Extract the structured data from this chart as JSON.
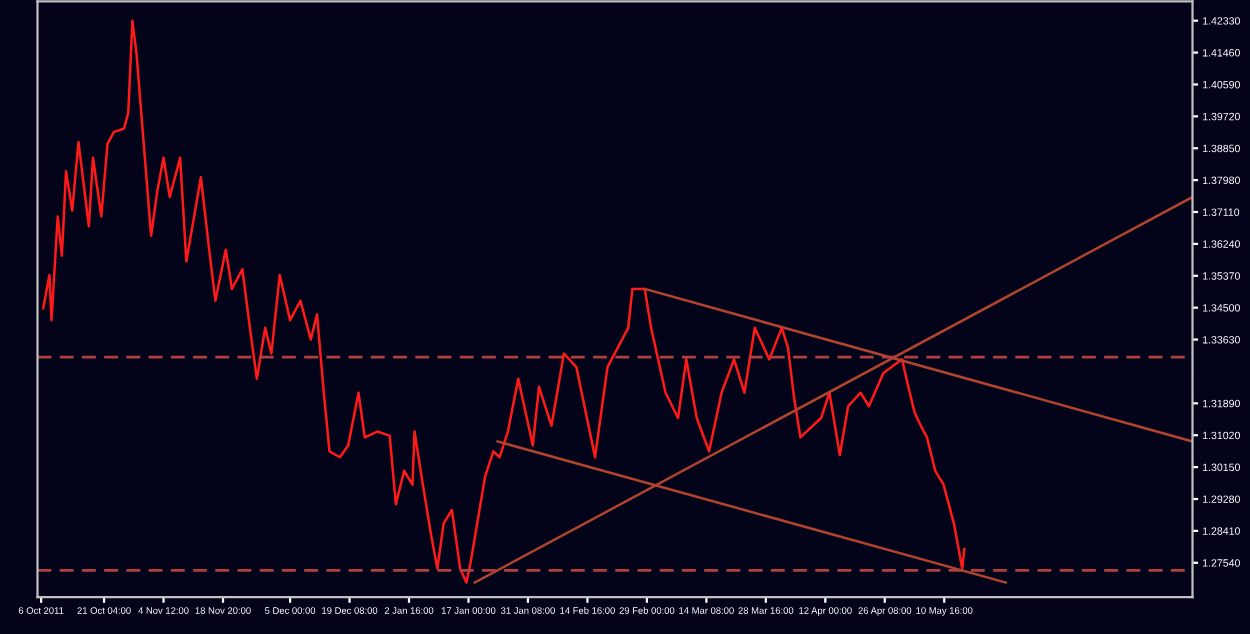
{
  "chart_data": {
    "type": "line",
    "xlim": [
      "2011-10-05T03:00",
      "2012-07-09T12:00"
    ],
    "ylim": [
      1.266,
      1.4286
    ],
    "xticks": [
      {
        "value": "2011-10-06",
        "label": "6 Oct 2011"
      },
      {
        "value": "2011-10-21T04:00",
        "label": "21 Oct 04:00"
      },
      {
        "value": "2011-11-04T12:00",
        "label": "4 Nov 12:00"
      },
      {
        "value": "2011-11-18T20:00",
        "label": "18 Nov 20:00"
      },
      {
        "value": "2011-12-05",
        "label": "5 Dec 00:00"
      },
      {
        "value": "2011-12-19T08:00",
        "label": "19 Dec 08:00"
      },
      {
        "value": "2012-01-02T16:00",
        "label": "2 Jan 16:00"
      },
      {
        "value": "2012-01-17",
        "label": "17 Jan 00:00"
      },
      {
        "value": "2012-01-31T08:00",
        "label": "31 Jan 08:00"
      },
      {
        "value": "2012-02-14T16:00",
        "label": "14 Feb 16:00"
      },
      {
        "value": "2012-02-29",
        "label": "29 Feb 00:00"
      },
      {
        "value": "2012-03-14T08:00",
        "label": "14 Mar 08:00"
      },
      {
        "value": "2012-03-28T16:00",
        "label": "28 Mar 16:00"
      },
      {
        "value": "2012-04-12",
        "label": "12 Apr 00:00"
      },
      {
        "value": "2012-04-26T08:00",
        "label": "26 Apr 08:00"
      },
      {
        "value": "2012-05-10T16:00",
        "label": "10 May 16:00"
      }
    ],
    "yticks": [
      {
        "value": 1.4233,
        "label": "1.42330"
      },
      {
        "value": 1.4146,
        "label": "1.41460"
      },
      {
        "value": 1.4059,
        "label": "1.40590"
      },
      {
        "value": 1.3972,
        "label": "1.39720"
      },
      {
        "value": 1.3885,
        "label": "1.38850"
      },
      {
        "value": 1.3798,
        "label": "1.37980"
      },
      {
        "value": 1.3711,
        "label": "1.37110"
      },
      {
        "value": 1.3624,
        "label": "1.36240"
      },
      {
        "value": 1.3537,
        "label": "1.35370"
      },
      {
        "value": 1.345,
        "label": "1.34500"
      },
      {
        "value": 1.3363,
        "label": "1.33630"
      },
      {
        "value": 1.3189,
        "label": "1.31890"
      },
      {
        "value": 1.3102,
        "label": "1.31020"
      },
      {
        "value": 1.3015,
        "label": "1.30150"
      },
      {
        "value": 1.2928,
        "label": "1.29280"
      },
      {
        "value": 1.2841,
        "label": "1.28410"
      },
      {
        "value": 1.2754,
        "label": "1.27540"
      }
    ],
    "grid": false,
    "ref_lines": [
      {
        "axis": "y",
        "value": 1.3315,
        "color": "#b04040",
        "line_style": "dashed"
      },
      {
        "axis": "y",
        "value": 1.2733,
        "color": "#b04040",
        "line_style": "dashed"
      }
    ],
    "series": [
      {
        "color": "#ff1a1a",
        "x": [
          "2011-10-06T12:00",
          "2011-10-08",
          "2011-10-08T12:00",
          "2011-10-10",
          "2011-10-11",
          "2011-10-12",
          "2011-10-13T12:00",
          "2011-10-15",
          "2011-10-17T12:00",
          "2011-10-18T12:00",
          "2011-10-20T12:00",
          "2011-10-22",
          "2011-10-23T12:00",
          "2011-10-26",
          "2011-10-27",
          "2011-10-28",
          "2011-10-29",
          "2011-10-30T12:00",
          "2011-11-01T12:00",
          "2011-11-03",
          "2011-11-04T12:00",
          "2011-11-06",
          "2011-11-08T12:00",
          "2011-11-10",
          "2011-11-13T12:00",
          "2011-11-15T12:00",
          "2011-11-17",
          "2011-11-19T12:00",
          "2011-11-21",
          "2011-11-23T12:00",
          "2011-11-25T12:00",
          "2011-11-27",
          "2011-11-29",
          "2011-11-30T12:00",
          "2011-12-02T12:00",
          "2011-12-05",
          "2011-12-07T12:00",
          "2011-12-10",
          "2011-12-11T12:00",
          "2011-12-13",
          "2011-12-14T12:00",
          "2011-12-17",
          "2011-12-19",
          "2011-12-21T12:00",
          "2011-12-23",
          "2011-12-26",
          "2011-12-29",
          "2011-12-30T12:00",
          "2012-01-01T12:00",
          "2012-01-03T12:00",
          "2012-01-04",
          "2012-01-06",
          "2012-01-08",
          "2012-01-09T12:00",
          "2012-01-11",
          "2012-01-13",
          "2012-01-15",
          "2012-01-16T12:00",
          "2012-01-17T12:00",
          "2012-01-21",
          "2012-01-23",
          "2012-01-24T12:00",
          "2012-01-26T12:00",
          "2012-01-29",
          "2012-02-01T12:00",
          "2012-02-03",
          "2012-02-06",
          "2012-02-09",
          "2012-02-12",
          "2012-02-16T12:00",
          "2012-02-19T12:00",
          "2012-02-24T12:00",
          "2012-02-25T12:00",
          "2012-02-28T12:00",
          "2012-03-01",
          "2012-03-04T12:00",
          "2012-03-07T12:00",
          "2012-03-09T12:00",
          "2012-03-12",
          "2012-03-15",
          "2012-03-18",
          "2012-03-21",
          "2012-03-23T12:00",
          "2012-03-26",
          "2012-03-29T12:00",
          "2012-04-01T12:00",
          "2012-04-03",
          "2012-04-04T12:00",
          "2012-04-06",
          "2012-04-11",
          "2012-04-13",
          "2012-04-15T12:00",
          "2012-04-17T12:00",
          "2012-04-20T12:00",
          "2012-04-22T12:00",
          "2012-04-26",
          "2012-04-30T12:00",
          "2012-05-02",
          "2012-05-03T12:00",
          "2012-05-05",
          "2012-05-06T12:00",
          "2012-05-08T12:00",
          "2012-05-10T12:00",
          "2012-05-13",
          "2012-05-15",
          "2012-05-15T12:00"
        ],
        "values": [
          1.3448,
          1.3539,
          1.3416,
          1.3699,
          1.3592,
          1.3822,
          1.3715,
          1.3902,
          1.3672,
          1.3859,
          1.3699,
          1.3897,
          1.3929,
          1.3939,
          1.3982,
          1.4233,
          1.4142,
          1.3929,
          1.3646,
          1.3768,
          1.3859,
          1.3752,
          1.3859,
          1.3576,
          1.3806,
          1.3608,
          1.3469,
          1.3608,
          1.3501,
          1.3555,
          1.3379,
          1.3256,
          1.3395,
          1.3325,
          1.3539,
          1.3416,
          1.3469,
          1.3363,
          1.3432,
          1.3234,
          1.3058,
          1.3042,
          1.3074,
          1.3218,
          1.3096,
          1.3112,
          1.3101,
          1.2914,
          1.3005,
          1.2967,
          1.3112,
          1.2967,
          1.2829,
          1.2738,
          1.2861,
          1.2898,
          1.2738,
          1.27,
          1.2754,
          1.2989,
          1.3058,
          1.3042,
          1.3112,
          1.3256,
          1.3074,
          1.3234,
          1.3128,
          1.3325,
          1.3288,
          1.3042,
          1.3288,
          1.3395,
          1.3501,
          1.3501,
          1.3395,
          1.3218,
          1.3149,
          1.3309,
          1.3149,
          1.3058,
          1.3218,
          1.3309,
          1.3218,
          1.3395,
          1.3309,
          1.3395,
          1.3341,
          1.3202,
          1.3096,
          1.3149,
          1.3218,
          1.3048,
          1.3181,
          1.3218,
          1.3181,
          1.3272,
          1.3309,
          1.3234,
          1.3165,
          1.3128,
          1.3096,
          1.3005,
          1.2967,
          1.2861,
          1.2738,
          1.2791
        ]
      },
      {
        "type": "line",
        "color": "#b0442e",
        "x": [
          "2012-01-18T12:00",
          "2012-07-09T12:00"
        ],
        "values": [
          1.27,
          1.3752
        ]
      },
      {
        "type": "line",
        "color": "#b0442e",
        "x": [
          "2012-02-28T12:00",
          "2012-07-09T12:00"
        ],
        "values": [
          1.3501,
          1.3085
        ]
      },
      {
        "type": "line",
        "color": "#b0442e",
        "x": [
          "2012-01-24",
          "2012-05-25T12:00"
        ],
        "values": [
          1.3085,
          1.27
        ]
      }
    ]
  }
}
